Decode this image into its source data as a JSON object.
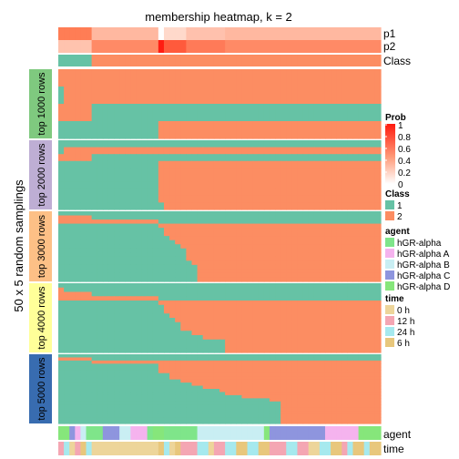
{
  "chart_data": {
    "type": "heatmap",
    "title": "membership heatmap, k = 2",
    "ylabel": "50 x 5 random samplings",
    "n_columns": 58,
    "top_annotation_labels": [
      "p1",
      "p2",
      "Class"
    ],
    "bottom_annotation_labels": [
      "agent",
      "time"
    ],
    "panels": [
      {
        "label": "top 1000 rows",
        "color": "#7FC97F"
      },
      {
        "label": "top 2000 rows",
        "color": "#BEAED4"
      },
      {
        "label": "top 3000 rows",
        "color": "#FDC086"
      },
      {
        "label": "top 4000 rows",
        "color": "#FFFF99"
      },
      {
        "label": "top 5000 rows",
        "color": "#386CB0"
      }
    ],
    "class_colors": {
      "1": "#66C2A5",
      "2": "#FC8D62"
    },
    "class_boundary_column": 6,
    "panel_steps": [
      [
        [
          0,
          1
        ],
        [
          1,
          1
        ],
        [
          6,
          0
        ],
        [
          18,
          1
        ]
      ],
      [
        [
          0,
          0
        ],
        [
          1,
          1
        ],
        [
          6,
          0
        ],
        [
          18,
          1
        ],
        [
          18,
          1
        ],
        [
          18,
          1
        ],
        [
          18,
          1
        ],
        [
          18,
          1
        ],
        [
          18,
          1
        ],
        [
          19,
          1
        ]
      ],
      [
        [
          0,
          0
        ],
        [
          6,
          0
        ],
        [
          18,
          0
        ],
        [
          18,
          1
        ],
        [
          19,
          1
        ],
        [
          19,
          1
        ],
        [
          20,
          1
        ],
        [
          21,
          1
        ],
        [
          22,
          1
        ],
        [
          23,
          1
        ],
        [
          23,
          1
        ],
        [
          23,
          1
        ],
        [
          24,
          1
        ],
        [
          25,
          1
        ],
        [
          25,
          1
        ],
        [
          25,
          1
        ],
        [
          25,
          1
        ]
      ],
      [
        [
          0,
          0
        ],
        [
          1,
          0
        ],
        [
          6,
          0
        ],
        [
          18,
          0
        ],
        [
          18,
          1
        ],
        [
          19,
          1
        ],
        [
          19,
          1
        ],
        [
          20,
          1
        ],
        [
          21,
          1
        ],
        [
          22,
          1
        ],
        [
          22,
          1
        ],
        [
          24,
          1
        ],
        [
          26,
          1
        ],
        [
          30,
          1
        ],
        [
          30,
          1
        ],
        [
          30,
          1
        ]
      ],
      [
        [
          0,
          0
        ],
        [
          6,
          0
        ],
        [
          6,
          1
        ],
        [
          18,
          1
        ],
        [
          18,
          1
        ],
        [
          18,
          1
        ],
        [
          20,
          1
        ],
        [
          20,
          1
        ],
        [
          22,
          1
        ],
        [
          24,
          1
        ],
        [
          26,
          1
        ],
        [
          29,
          1
        ],
        [
          30,
          1
        ],
        [
          33,
          1
        ],
        [
          38,
          1
        ],
        [
          40,
          1
        ],
        [
          40,
          1
        ],
        [
          40,
          1
        ],
        [
          40,
          1
        ],
        [
          40,
          1
        ],
        [
          40,
          1
        ],
        [
          40,
          1
        ]
      ]
    ],
    "legend": {
      "prob": {
        "title": "Prob",
        "ticks": [
          "1",
          "0.8",
          "0.6",
          "0.4",
          "0.2",
          "0"
        ]
      },
      "class": {
        "title": "Class",
        "entries": [
          {
            "label": "1",
            "color": "#66C2A5"
          },
          {
            "label": "2",
            "color": "#FC8D62"
          }
        ]
      },
      "agent": {
        "title": "agent",
        "entries": [
          {
            "label": "hGR-alpha",
            "color": "#7FE58A"
          },
          {
            "label": "hGR-alpha A",
            "color": "#F5B3EE"
          },
          {
            "label": "hGR-alpha B",
            "color": "#C9EEF3"
          },
          {
            "label": "hGR-alpha C",
            "color": "#8E95DE"
          },
          {
            "label": "hGR-alpha D",
            "color": "#86E67B"
          }
        ]
      },
      "time": {
        "title": "time",
        "entries": [
          {
            "label": "0 h",
            "color": "#EDD59A"
          },
          {
            "label": "12 h",
            "color": "#F4A6B3"
          },
          {
            "label": "24 h",
            "color": "#A6E9EE"
          },
          {
            "label": "6 h",
            "color": "#E8C77C"
          }
        ]
      }
    },
    "p1_row": [
      "#FF7D55",
      "#FF7D55",
      "#FF7D55",
      "#FF7D55",
      "#FF7D55",
      "#FF7D55",
      "#FFB8A0",
      "#FFB8A0",
      "#FFB8A0",
      "#FFB8A0",
      "#FFB8A0",
      "#FFB8A0",
      "#FFB8A0",
      "#FFB8A0",
      "#FFB8A0",
      "#FFB8A0",
      "#FFB8A0",
      "#FFB8A0",
      "#FFFFFF",
      "#FFD9CB",
      "#FFD9CB",
      "#FFD9CB",
      "#FFD9CB",
      "#FFC1AD",
      "#FFC1AD",
      "#FFC1AD",
      "#FFC1AD",
      "#FFC1AD",
      "#FFC1AD",
      "#FFC1AD",
      "#FFB8A0",
      "#FFB8A0",
      "#FFB8A0",
      "#FFB8A0",
      "#FFB8A0",
      "#FFB8A0",
      "#FFB8A0",
      "#FFB8A0",
      "#FFB8A0",
      "#FFB8A0",
      "#FFB8A0",
      "#FFB8A0",
      "#FFB8A0",
      "#FFB8A0",
      "#FFB8A0",
      "#FFB8A0",
      "#FFB8A0",
      "#FFB8A0",
      "#FFB8A0",
      "#FFB8A0",
      "#FFB8A0",
      "#FFB8A0",
      "#FFB8A0",
      "#FFB8A0",
      "#FFB8A0",
      "#FFB8A0",
      "#FFB8A0",
      "#FFB8A0"
    ],
    "p2_row": [
      "#FFC3AE",
      "#FFC3AE",
      "#FFC3AE",
      "#FFC3AE",
      "#FFC3AE",
      "#FFC3AE",
      "#FF8A66",
      "#FF8A66",
      "#FF8A66",
      "#FF8A66",
      "#FF8A66",
      "#FF8A66",
      "#FF8A66",
      "#FF8A66",
      "#FF8A66",
      "#FF8A66",
      "#FF8A66",
      "#FF8A66",
      "#FF1C12",
      "#FF5A3C",
      "#FF5A3C",
      "#FF5A3C",
      "#FF5A3C",
      "#FF7A58",
      "#FF7A58",
      "#FF7A58",
      "#FF7A58",
      "#FF7A58",
      "#FF7A58",
      "#FF7A58",
      "#FF8A66",
      "#FF8A66",
      "#FF8A66",
      "#FF8A66",
      "#FF8A66",
      "#FF8A66",
      "#FF8A66",
      "#FF8A66",
      "#FF8A66",
      "#FF8A66",
      "#FF8A66",
      "#FF8A66",
      "#FF8A66",
      "#FF8A66",
      "#FF8A66",
      "#FF8A66",
      "#FF8A66",
      "#FF8A66",
      "#FF8A66",
      "#FF8A66",
      "#FF8A66",
      "#FF8A66",
      "#FF8A66",
      "#FF8A66",
      "#FF8A66",
      "#FF8A66",
      "#FF8A66",
      "#FF8A66"
    ],
    "agent_row": [
      "#86E67B",
      "#86E67B",
      "#8E95DE",
      "#F5B3EE",
      "#C9EEF3",
      "#7FE58A",
      "#7FE58A",
      "#7FE58A",
      "#8E95DE",
      "#8E95DE",
      "#8E95DE",
      "#C9EEF3",
      "#C9EEF3",
      "#F5B3EE",
      "#F5B3EE",
      "#F5B3EE",
      "#7FE58A",
      "#86E67B",
      "#86E67B",
      "#7FE58A",
      "#7FE58A",
      "#7FE58A",
      "#7FE58A",
      "#7FE58A",
      "#7FE58A",
      "#C9EEF3",
      "#C9EEF3",
      "#C9EEF3",
      "#C9EEF3",
      "#C9EEF3",
      "#C9EEF3",
      "#C9EEF3",
      "#C9EEF3",
      "#C9EEF3",
      "#C9EEF3",
      "#C9EEF3",
      "#C9EEF3",
      "#86E67B",
      "#8E95DE",
      "#8E95DE",
      "#8E95DE",
      "#8E95DE",
      "#8E95DE",
      "#8E95DE",
      "#8E95DE",
      "#8E95DE",
      "#8E95DE",
      "#8E95DE",
      "#F5B3EE",
      "#F5B3EE",
      "#F5B3EE",
      "#F5B3EE",
      "#F5B3EE",
      "#F5B3EE",
      "#86E67B",
      "#86E67B",
      "#86E67B",
      "#86E67B"
    ],
    "time_row": [
      "#F4A6B3",
      "#A6E9EE",
      "#EDD59A",
      "#F4A6B3",
      "#E8C77C",
      "#A6E9EE",
      "#EDD59A",
      "#EDD59A",
      "#EDD59A",
      "#EDD59A",
      "#EDD59A",
      "#EDD59A",
      "#EDD59A",
      "#EDD59A",
      "#EDD59A",
      "#EDD59A",
      "#EDD59A",
      "#EDD59A",
      "#E8C77C",
      "#A6E9EE",
      "#EDD59A",
      "#E8C77C",
      "#F4A6B3",
      "#F4A6B3",
      "#F4A6B3",
      "#A6E9EE",
      "#A6E9EE",
      "#EDD59A",
      "#F4A6B3",
      "#F4A6B3",
      "#A6E9EE",
      "#A6E9EE",
      "#E8C77C",
      "#E8C77C",
      "#A6E9EE",
      "#A6E9EE",
      "#E8C77C",
      "#E8C77C",
      "#F4A6B3",
      "#F4A6B3",
      "#F4A6B3",
      "#A6E9EE",
      "#A6E9EE",
      "#F4A6B3",
      "#F4A6B3",
      "#EDD59A",
      "#EDD59A",
      "#A6E9EE",
      "#A6E9EE",
      "#E8C77C",
      "#E8C77C",
      "#F4A6B3",
      "#A6E9EE",
      "#E8C77C",
      "#E8C77C",
      "#A6E9EE",
      "#E8C77C",
      "#E8C77C"
    ]
  }
}
